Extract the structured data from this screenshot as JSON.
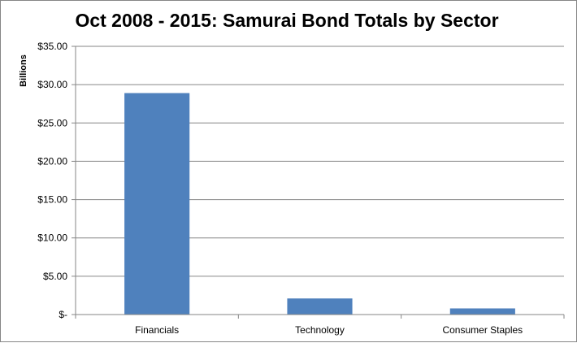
{
  "chart_data": {
    "type": "bar",
    "title": "Oct 2008 - 2015: Samurai Bond Totals by Sector",
    "xlabel": "",
    "ylabel": "Billions",
    "categories": [
      "Financials",
      "Technology",
      "Consumer Staples"
    ],
    "values": [
      28.9,
      2.1,
      0.8
    ],
    "ylim": [
      0,
      35
    ],
    "yticks": [
      0,
      5,
      10,
      15,
      20,
      25,
      30,
      35
    ],
    "ytick_labels": [
      "$-",
      "$5.00",
      "$10.00",
      "$15.00",
      "$20.00",
      "$25.00",
      "$30.00",
      "$35.00"
    ],
    "grid": "horizontal",
    "legend": "none",
    "bar_color": "#4f81bd",
    "grid_color": "#868686"
  }
}
